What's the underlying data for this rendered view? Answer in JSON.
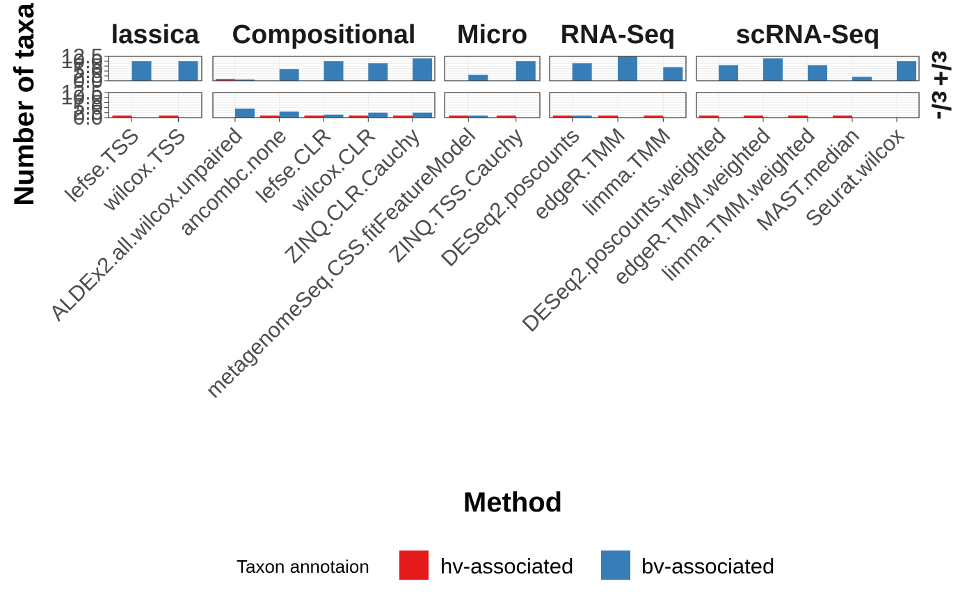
{
  "chart_data": {
    "type": "bar",
    "title": "",
    "xlabel": "Method",
    "ylabel": "Number of taxa",
    "ylim": [
      0,
      12.5
    ],
    "y_ticks": [
      "0.0",
      "2.5",
      "5.0",
      "7.5",
      "10.0",
      "12.5"
    ],
    "grid": true,
    "legend": {
      "title": "Taxon annotaion",
      "position": "bottom",
      "entries": [
        {
          "name": "hv-associated",
          "color": "#E41A1C"
        },
        {
          "name": "bv-associated",
          "color": "#377EB8"
        }
      ]
    },
    "row_labels": [
      "ɛ/+",
      "ɛ/-"
    ],
    "panels": [
      {
        "name": "Classical",
        "strip_label": "lassica",
        "categories": [
          "lefse.TSS",
          "wilcox.TSS"
        ],
        "rows": [
          {
            "hv": [
              0,
              0
            ],
            "bv": [
              10,
              10
            ]
          },
          {
            "hv": [
              1,
              1
            ],
            "bv": [
              0,
              0
            ]
          }
        ]
      },
      {
        "name": "Compositional",
        "strip_label": "Compositional",
        "categories": [
          "ALDEx2.all.wilcox.unpaired",
          "ancombc.none",
          "lefse.CLR",
          "wilcox.CLR",
          "ZINQ.CLR.Cauchy"
        ],
        "rows": [
          {
            "hv": [
              0.8,
              0,
              0,
              0,
              0
            ],
            "bv": [
              0.6,
              6,
              10,
              9,
              11.5
            ]
          },
          {
            "hv": [
              0,
              1,
              1,
              1,
              1
            ],
            "bv": [
              4.5,
              3,
              1.5,
              2.5,
              2.5
            ]
          }
        ]
      },
      {
        "name": "Micro",
        "strip_label": "Micro",
        "categories": [
          "metagenomeSeq.CSS.fitFeatureModel",
          "ZINQ.TSS.Cauchy"
        ],
        "rows": [
          {
            "hv": [
              0,
              0
            ],
            "bv": [
              3,
              10
            ]
          },
          {
            "hv": [
              1,
              1
            ],
            "bv": [
              1,
              0
            ]
          }
        ]
      },
      {
        "name": "RNA-Seq",
        "strip_label": "RNA-Seq",
        "categories": [
          "DESeq2.poscounts",
          "edgeR.TMM",
          "limma.TMM"
        ],
        "rows": [
          {
            "hv": [
              0,
              0,
              0
            ],
            "bv": [
              9,
              12.5,
              7
            ]
          },
          {
            "hv": [
              1,
              1,
              1
            ],
            "bv": [
              1,
              0,
              0
            ]
          }
        ]
      },
      {
        "name": "scRNA-Seq",
        "strip_label": "scRNA-Seq",
        "categories": [
          "DESeq2.poscounts.weighted",
          "edgeR.TMM.weighted",
          "limma.TMM.weighted",
          "MAST.median",
          "Seurat.wilcox"
        ],
        "rows": [
          {
            "hv": [
              0,
              0,
              0,
              0,
              0
            ],
            "bv": [
              8,
              11.5,
              8,
              2,
              10
            ]
          },
          {
            "hv": [
              1,
              1,
              1,
              1,
              0
            ],
            "bv": [
              0,
              0,
              0,
              0,
              0
            ]
          }
        ]
      }
    ]
  }
}
